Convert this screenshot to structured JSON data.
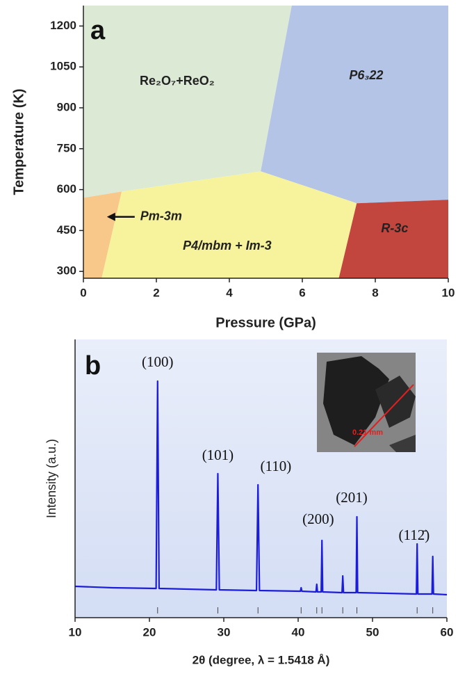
{
  "chart_data": [
    {
      "type": "phase-diagram",
      "panel": "a",
      "xlabel": "Pressure (GPa)",
      "ylabel": "Temperature (K)",
      "xlim": [
        0,
        10
      ],
      "ylim": [
        275,
        1275
      ],
      "xticks": [
        0,
        2,
        4,
        6,
        8,
        10
      ],
      "yticks": [
        300,
        450,
        600,
        750,
        900,
        1050,
        1200
      ],
      "regions": [
        {
          "name": "Re₂O₇+ReO₂",
          "color": "#dcead5",
          "vertices": [
            [
              0,
              1275
            ],
            [
              5.71,
              1275
            ],
            [
              4.86,
              667
            ],
            [
              1.05,
              593
            ],
            [
              0,
              570
            ]
          ],
          "label_at": [
            2.57,
            996
          ]
        },
        {
          "name": "P6₃22",
          "color": "#b4c4e6",
          "vertices": [
            [
              5.71,
              1275
            ],
            [
              10,
              1275
            ],
            [
              10,
              563
            ],
            [
              7.49,
              550
            ],
            [
              4.86,
              667
            ]
          ],
          "label_at": [
            7.75,
            1017
          ]
        },
        {
          "name": "Pm-3m",
          "color": "#f8c88a",
          "vertices": [
            [
              0,
              570
            ],
            [
              1.05,
              593
            ],
            [
              0.5,
              275
            ],
            [
              0,
              275
            ]
          ],
          "label_at": [
            2.13,
            500
          ]
        },
        {
          "name": "P4/mbm + Im-3",
          "color": "#f7f39c",
          "vertices": [
            [
              1.05,
              593
            ],
            [
              4.86,
              667
            ],
            [
              7.49,
              550
            ],
            [
              7.0,
              275
            ],
            [
              0.5,
              275
            ]
          ],
          "label_at": [
            3.94,
            392
          ]
        },
        {
          "name": "R-3c",
          "color": "#c2453e",
          "vertices": [
            [
              7.49,
              550
            ],
            [
              10,
              563
            ],
            [
              10,
              275
            ],
            [
              7.0,
              275
            ]
          ],
          "label_at": [
            8.53,
            456
          ]
        }
      ]
    },
    {
      "type": "line",
      "panel": "b",
      "xlabel": "2θ (degree, λ = 1.5418 Å)",
      "ylabel": "Intensity (a.u.)",
      "xlim": [
        10,
        60
      ],
      "xticks": [
        10,
        20,
        30,
        40,
        50,
        60
      ],
      "ylim": [
        -8,
        392
      ],
      "series": [
        {
          "color": "#1c1cdc",
          "x": [
            10,
            15,
            20.9,
            21.1,
            21.3,
            29.0,
            29.2,
            29.4,
            34.4,
            34.6,
            34.8,
            40.3,
            40.4,
            40.5,
            42.4,
            42.5,
            42.6,
            43.1,
            43.2,
            43.3,
            45.9,
            46.0,
            46.1,
            47.8,
            47.9,
            48.0,
            55.9,
            56.0,
            56.1,
            58.0,
            58.1,
            58.2,
            60
          ],
          "values": [
            37,
            35,
            34,
            332,
            34,
            32,
            199,
            32,
            31,
            183,
            31,
            30,
            35,
            30,
            29,
            40,
            29,
            29,
            103,
            29,
            28,
            52,
            28,
            28,
            137,
            28,
            26,
            98,
            26,
            26,
            80,
            26,
            25
          ]
        }
      ],
      "reflections": [
        21.1,
        29.2,
        34.6,
        40.4,
        42.5,
        43.2,
        46.0,
        47.9,
        56.0,
        58.1
      ],
      "annotations": [
        {
          "text": "(100)",
          "x": 21.1,
          "y": 358
        },
        {
          "text": "(101)",
          "x": 29.2,
          "y": 224
        },
        {
          "text": "(110)",
          "x": 37.0,
          "y": 208
        },
        {
          "text": "(200)",
          "x": 42.7,
          "y": 132
        },
        {
          "text": "(201)",
          "x": 47.2,
          "y": 163
        },
        {
          "text": "(112̄)",
          "x": 55.6,
          "y": 109
        }
      ],
      "inset": {
        "scale_label": "0.21 mm"
      }
    }
  ]
}
